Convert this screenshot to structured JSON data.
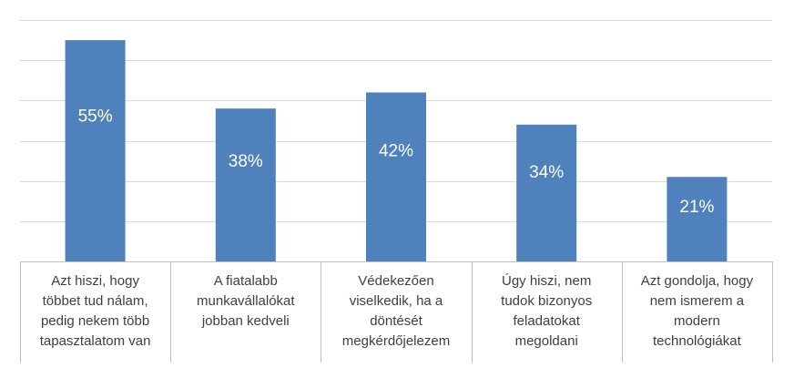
{
  "chart_data": {
    "type": "bar",
    "categories": [
      [
        "Azt hiszi, hogy",
        "többet tud nálam,",
        "pedig nekem több",
        "tapasztalatom van"
      ],
      [
        "A fiatalabb",
        "munkavállalókat",
        "jobban kedveli"
      ],
      [
        "Védekezően",
        "viselkedik, ha a",
        "döntését",
        "megkérdőjelezem"
      ],
      [
        "Úgy hiszi, nem",
        "tudok bizonyos",
        "feladatokat",
        "megoldani"
      ],
      [
        "Azt gondolja, hogy",
        "nem ismerem a",
        "modern",
        "technológiákat"
      ]
    ],
    "values": [
      55,
      38,
      42,
      34,
      21
    ],
    "value_labels": [
      "55%",
      "38%",
      "42%",
      "34%",
      "21%"
    ],
    "ylim": [
      0,
      60
    ],
    "grid": true,
    "colors": {
      "bar": "#4f81bd",
      "gridline": "#d9d9d9",
      "axis": "#bfbfbf",
      "label_text": "#404040",
      "value_text": "#ffffff"
    }
  }
}
